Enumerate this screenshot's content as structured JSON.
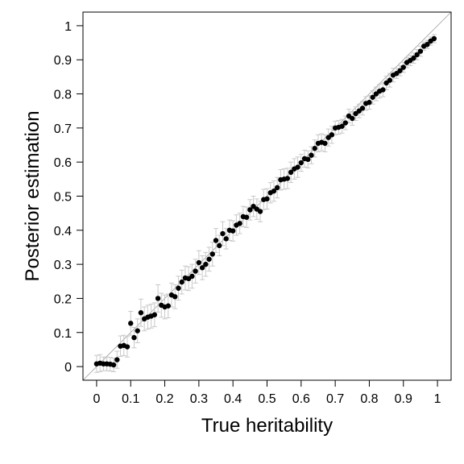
{
  "chart_data": {
    "type": "scatter",
    "xlabel": "True heritability",
    "ylabel": "Posterior estimation",
    "xlim": [
      -0.04,
      1.04
    ],
    "ylim": [
      -0.04,
      1.04
    ],
    "xticks": [
      0,
      0.1,
      0.2,
      0.3,
      0.4,
      0.5,
      0.6,
      0.7,
      0.8,
      0.9,
      1
    ],
    "yticks": [
      0,
      0.1,
      0.2,
      0.3,
      0.4,
      0.5,
      0.6,
      0.7,
      0.8,
      0.9,
      1
    ],
    "xtick_labels": [
      "0",
      "0.1",
      "0.2",
      "0.3",
      "0.4",
      "0.5",
      "0.6",
      "0.7",
      "0.8",
      "0.9",
      "1"
    ],
    "ytick_labels": [
      "0",
      "0.1",
      "0.2",
      "0.3",
      "0.4",
      "0.5",
      "0.6",
      "0.7",
      "0.8",
      "0.9",
      "1"
    ],
    "reference_line": "y = x",
    "error_bars": true,
    "grid": false,
    "colors": {
      "points": "#000000",
      "error_bars": "#c8c8c8",
      "reference_line": "#a0a0a0",
      "axes": "#000000"
    },
    "series": [
      {
        "x": [
          0.0,
          0.01,
          0.02,
          0.03,
          0.04,
          0.05,
          0.06,
          0.07,
          0.08,
          0.09,
          0.1,
          0.11,
          0.12,
          0.13,
          0.14,
          0.15,
          0.16,
          0.17,
          0.18,
          0.19,
          0.2,
          0.21,
          0.22,
          0.23,
          0.24,
          0.25,
          0.26,
          0.27,
          0.28,
          0.29,
          0.3,
          0.31,
          0.32,
          0.33,
          0.34,
          0.35,
          0.36,
          0.37,
          0.38,
          0.39,
          0.4,
          0.41,
          0.42,
          0.43,
          0.44,
          0.45,
          0.46,
          0.47,
          0.48,
          0.49,
          0.5,
          0.51,
          0.52,
          0.53,
          0.54,
          0.55,
          0.56,
          0.57,
          0.58,
          0.59,
          0.6,
          0.61,
          0.62,
          0.63,
          0.64,
          0.65,
          0.66,
          0.67,
          0.68,
          0.69,
          0.7,
          0.71,
          0.72,
          0.73,
          0.74,
          0.75,
          0.76,
          0.77,
          0.78,
          0.79,
          0.8,
          0.81,
          0.82,
          0.83,
          0.84,
          0.85,
          0.86,
          0.87,
          0.88,
          0.89,
          0.9,
          0.91,
          0.92,
          0.93,
          0.94,
          0.95,
          0.96,
          0.97,
          0.98,
          0.99
        ],
        "y": [
          0.008,
          0.01,
          0.008,
          0.008,
          0.007,
          0.005,
          0.02,
          0.06,
          0.062,
          0.058,
          0.127,
          0.085,
          0.105,
          0.158,
          0.14,
          0.145,
          0.148,
          0.152,
          0.2,
          0.18,
          0.175,
          0.178,
          0.21,
          0.205,
          0.23,
          0.248,
          0.26,
          0.258,
          0.265,
          0.28,
          0.305,
          0.29,
          0.3,
          0.315,
          0.33,
          0.37,
          0.355,
          0.39,
          0.375,
          0.4,
          0.398,
          0.415,
          0.42,
          0.44,
          0.438,
          0.46,
          0.47,
          0.462,
          0.455,
          0.49,
          0.492,
          0.51,
          0.515,
          0.525,
          0.548,
          0.55,
          0.552,
          0.57,
          0.58,
          0.585,
          0.598,
          0.61,
          0.608,
          0.62,
          0.64,
          0.655,
          0.658,
          0.655,
          0.672,
          0.68,
          0.7,
          0.702,
          0.705,
          0.715,
          0.735,
          0.728,
          0.742,
          0.75,
          0.758,
          0.772,
          0.775,
          0.79,
          0.8,
          0.808,
          0.812,
          0.832,
          0.84,
          0.855,
          0.86,
          0.868,
          0.878,
          0.892,
          0.898,
          0.905,
          0.915,
          0.925,
          0.94,
          0.945,
          0.955,
          0.962
        ],
        "err": [
          0.025,
          0.025,
          0.02,
          0.02,
          0.02,
          0.02,
          0.025,
          0.03,
          0.03,
          0.03,
          0.035,
          0.03,
          0.035,
          0.04,
          0.035,
          0.035,
          0.035,
          0.035,
          0.04,
          0.035,
          0.035,
          0.035,
          0.035,
          0.035,
          0.035,
          0.035,
          0.035,
          0.035,
          0.035,
          0.035,
          0.035,
          0.035,
          0.035,
          0.035,
          0.035,
          0.035,
          0.03,
          0.035,
          0.03,
          0.03,
          0.03,
          0.03,
          0.03,
          0.03,
          0.03,
          0.03,
          0.03,
          0.03,
          0.03,
          0.03,
          0.03,
          0.03,
          0.03,
          0.03,
          0.03,
          0.03,
          0.03,
          0.03,
          0.03,
          0.03,
          0.025,
          0.025,
          0.025,
          0.025,
          0.025,
          0.025,
          0.025,
          0.025,
          0.025,
          0.025,
          0.02,
          0.02,
          0.02,
          0.02,
          0.02,
          0.02,
          0.02,
          0.02,
          0.02,
          0.02,
          0.02,
          0.02,
          0.02,
          0.02,
          0.02,
          0.02,
          0.02,
          0.02,
          0.015,
          0.015,
          0.015,
          0.015,
          0.015,
          0.015,
          0.015,
          0.015,
          0.012,
          0.012,
          0.012,
          0.012
        ]
      }
    ]
  }
}
